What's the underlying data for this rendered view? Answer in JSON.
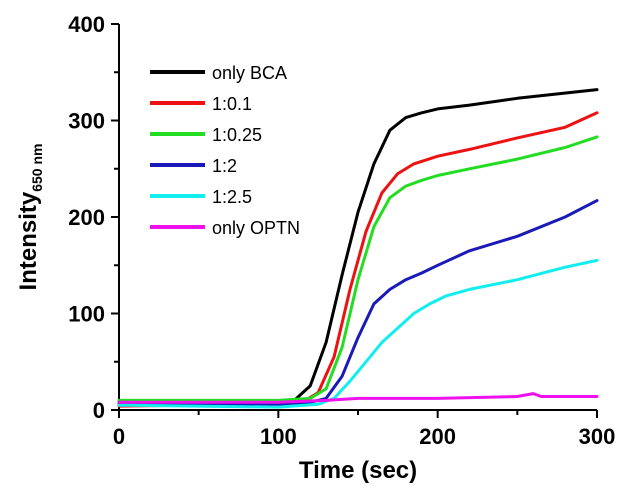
{
  "chart_data": {
    "type": "line",
    "xlabel": "Time (sec)",
    "ylabel": "Intensity",
    "ylabel_subscript": "650 nm",
    "xlim": [
      0,
      300
    ],
    "ylim": [
      0,
      400
    ],
    "x_ticks": [
      "0",
      "100",
      "200",
      "300"
    ],
    "y_ticks": [
      "0",
      "100",
      "200",
      "300",
      "400"
    ],
    "grid": false,
    "legend_position": "upper-left",
    "series": [
      {
        "name": "only BCA",
        "color": "#000000",
        "x": [
          0,
          100,
          110,
          120,
          130,
          140,
          150,
          160,
          170,
          180,
          190,
          200,
          220,
          250,
          300
        ],
        "y": [
          8,
          8,
          10,
          25,
          70,
          140,
          205,
          255,
          290,
          303,
          308,
          312,
          316,
          323,
          332
        ]
      },
      {
        "name": "1:0.1",
        "color": "#ee1111",
        "x": [
          0,
          100,
          115,
          125,
          135,
          145,
          155,
          165,
          175,
          185,
          200,
          220,
          250,
          280,
          300
        ],
        "y": [
          4,
          6,
          8,
          18,
          55,
          125,
          185,
          225,
          245,
          255,
          263,
          270,
          282,
          293,
          308
        ]
      },
      {
        "name": "1:0.25",
        "color": "#22dd22",
        "x": [
          0,
          100,
          120,
          130,
          140,
          150,
          160,
          170,
          180,
          190,
          200,
          220,
          250,
          280,
          300
        ],
        "y": [
          10,
          10,
          12,
          22,
          65,
          135,
          190,
          220,
          232,
          238,
          243,
          250,
          260,
          272,
          283
        ]
      },
      {
        "name": "1:2",
        "color": "#1a1ab8",
        "x": [
          0,
          100,
          120,
          130,
          140,
          150,
          160,
          170,
          180,
          190,
          200,
          220,
          250,
          280,
          300
        ],
        "y": [
          6,
          6,
          8,
          12,
          35,
          75,
          110,
          125,
          135,
          142,
          150,
          165,
          180,
          200,
          217
        ]
      },
      {
        "name": "1:2.5",
        "color": "#11eeee",
        "x": [
          0,
          100,
          125,
          135,
          145,
          155,
          165,
          175,
          185,
          195,
          205,
          220,
          250,
          280,
          300
        ],
        "y": [
          5,
          3,
          6,
          12,
          30,
          50,
          70,
          85,
          100,
          110,
          118,
          125,
          135,
          148,
          155
        ]
      },
      {
        "name": "only OPTN",
        "color": "#ee11ee",
        "x": [
          0,
          100,
          130,
          150,
          200,
          250,
          260,
          265,
          300
        ],
        "y": [
          8,
          8,
          10,
          12,
          12,
          14,
          17,
          14,
          14
        ]
      }
    ]
  }
}
